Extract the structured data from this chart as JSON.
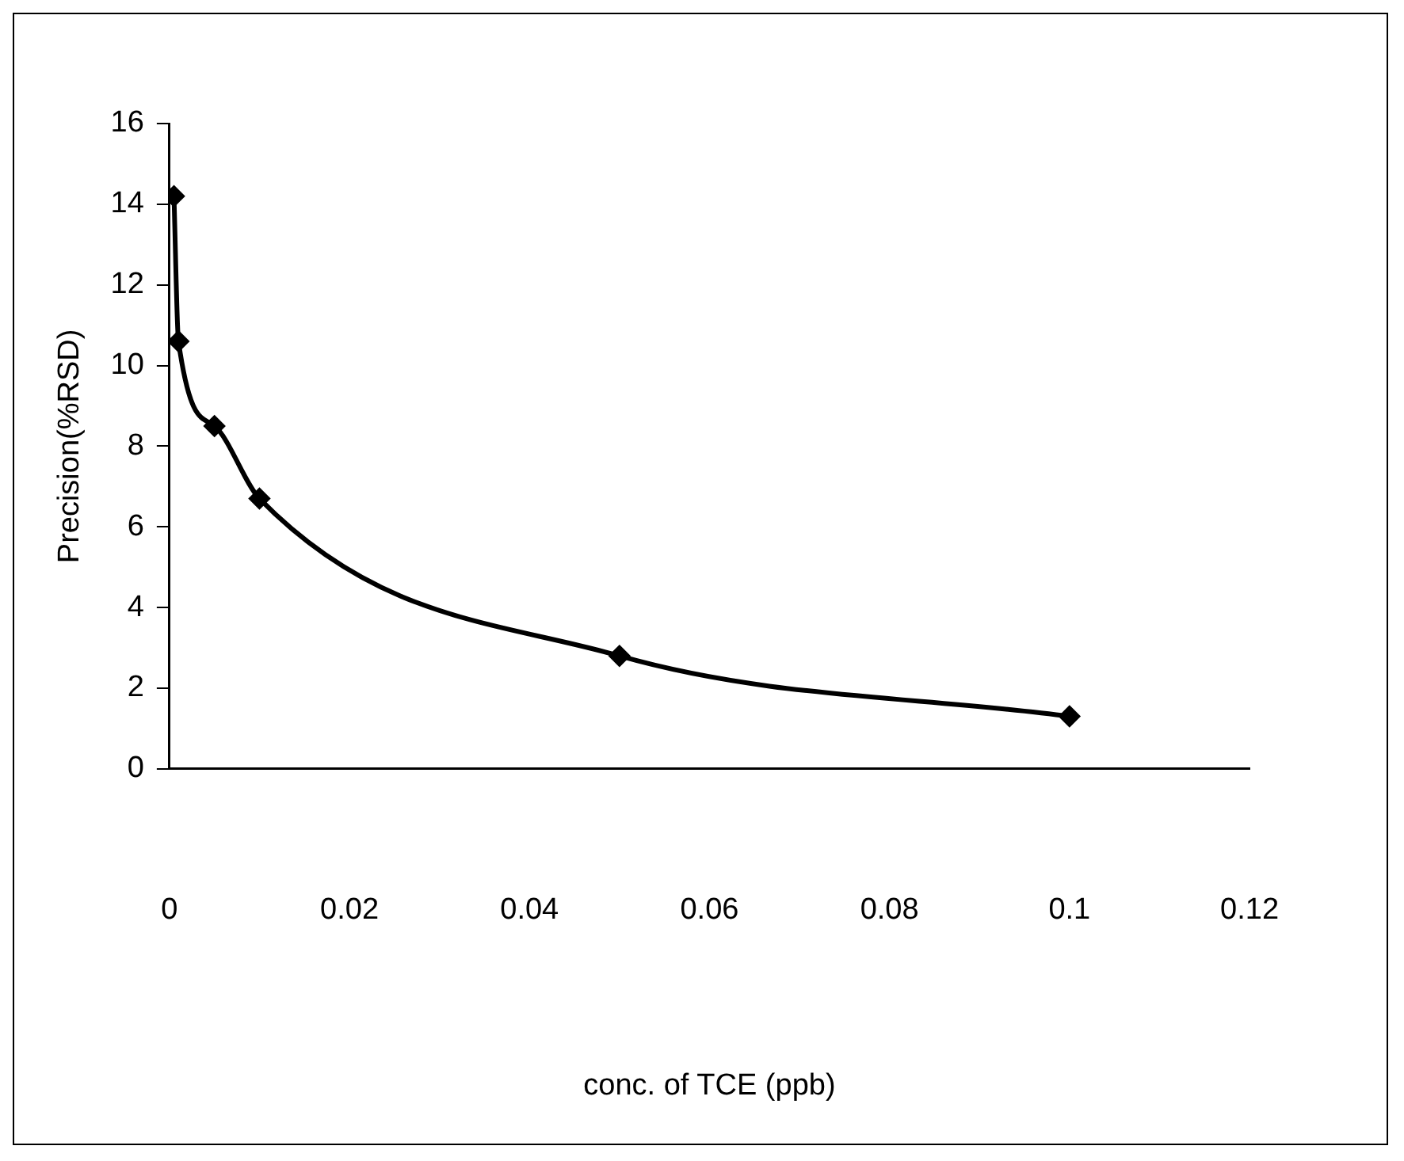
{
  "chart_data": {
    "type": "line",
    "xlabel": "conc. of TCE (ppb)",
    "ylabel": "Precision(%RSD)",
    "x": [
      0.0005,
      0.001,
      0.005,
      0.01,
      0.05,
      0.1
    ],
    "series": [
      {
        "color": "#000000",
        "values": [
          14.2,
          10.6,
          8.5,
          6.7,
          2.8,
          1.3
        ]
      }
    ],
    "xlim": [
      0,
      0.12
    ],
    "xticks": [
      0,
      0.02,
      0.04,
      0.06,
      0.08,
      0.1,
      0.12
    ],
    "ylim": [
      0,
      16
    ],
    "yticks": [
      0,
      2,
      4,
      6,
      8,
      10,
      12,
      14,
      16
    ],
    "grid": false,
    "legend": false,
    "marker": "diamond",
    "line_style": "solid"
  }
}
